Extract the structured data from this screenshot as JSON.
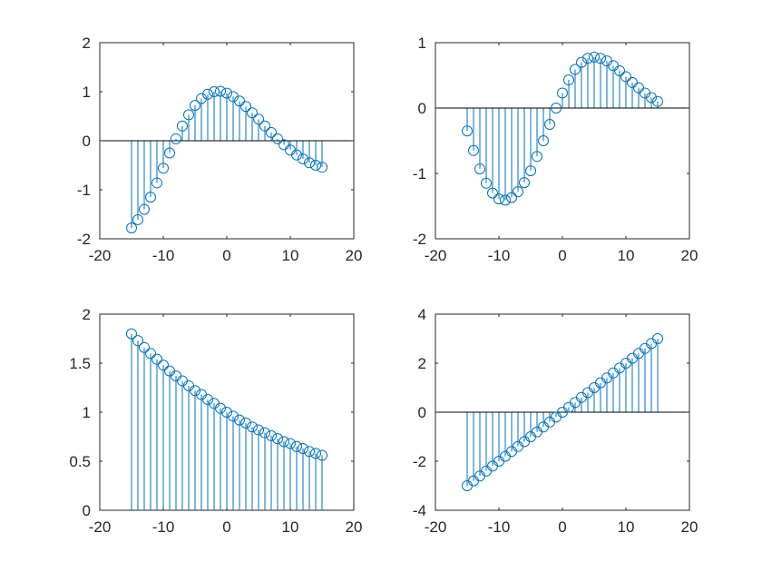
{
  "figure": {
    "line_color": "#0072BD"
  },
  "chart_data": [
    {
      "type": "stem",
      "position": "top-left",
      "xlim": [
        -20,
        20
      ],
      "ylim": [
        -2,
        2
      ],
      "xticks": [
        -20,
        -10,
        0,
        10,
        20
      ],
      "yticks": [
        -2,
        -1,
        0,
        1,
        2
      ],
      "xtick_labels": [
        "-20",
        "-10",
        "0",
        "10",
        "20"
      ],
      "ytick_labels": [
        "-2",
        "-1",
        "0",
        "1",
        "2"
      ],
      "baseline": 0,
      "x": [
        -15,
        -14,
        -13,
        -12,
        -11,
        -10,
        -9,
        -8,
        -7,
        -6,
        -5,
        -4,
        -3,
        -2,
        -1,
        0,
        1,
        2,
        3,
        4,
        5,
        6,
        7,
        8,
        9,
        10,
        11,
        12,
        13,
        14,
        15
      ],
      "y": [
        -1.78,
        -1.61,
        -1.4,
        -1.15,
        -0.86,
        -0.56,
        -0.25,
        0.04,
        0.3,
        0.53,
        0.72,
        0.86,
        0.95,
        1.0,
        1.01,
        0.97,
        0.9,
        0.81,
        0.7,
        0.57,
        0.44,
        0.3,
        0.17,
        0.04,
        -0.08,
        -0.19,
        -0.29,
        -0.37,
        -0.45,
        -0.5,
        -0.54
      ]
    },
    {
      "type": "stem",
      "position": "top-right",
      "xlim": [
        -20,
        20
      ],
      "ylim": [
        -2,
        1
      ],
      "xticks": [
        -20,
        -10,
        0,
        10,
        20
      ],
      "yticks": [
        -2,
        -1,
        0,
        1
      ],
      "xtick_labels": [
        "-20",
        "-10",
        "0",
        "10",
        "20"
      ],
      "ytick_labels": [
        "-2",
        "-1",
        "0",
        "1"
      ],
      "baseline": 0,
      "x": [
        -15,
        -14,
        -13,
        -12,
        -11,
        -10,
        -9,
        -8,
        -7,
        -6,
        -5,
        -4,
        -3,
        -2,
        -1,
        0,
        1,
        2,
        3,
        4,
        5,
        6,
        7,
        8,
        9,
        10,
        11,
        12,
        13,
        14,
        15
      ],
      "y": [
        -0.35,
        -0.65,
        -0.93,
        -1.15,
        -1.3,
        -1.39,
        -1.41,
        -1.37,
        -1.28,
        -1.14,
        -0.96,
        -0.74,
        -0.5,
        -0.25,
        0.0,
        0.23,
        0.43,
        0.59,
        0.7,
        0.76,
        0.78,
        0.76,
        0.72,
        0.65,
        0.57,
        0.48,
        0.39,
        0.31,
        0.23,
        0.16,
        0.1
      ]
    },
    {
      "type": "stem",
      "position": "bottom-left",
      "xlim": [
        -20,
        20
      ],
      "ylim": [
        0,
        2
      ],
      "xticks": [
        -20,
        -10,
        0,
        10,
        20
      ],
      "yticks": [
        0,
        0.5,
        1,
        1.5,
        2
      ],
      "xtick_labels": [
        "-20",
        "-10",
        "0",
        "10",
        "20"
      ],
      "ytick_labels": [
        "0",
        "0.5",
        "1",
        "1.5",
        "2"
      ],
      "baseline": 0,
      "x": [
        -15,
        -14,
        -13,
        -12,
        -11,
        -10,
        -9,
        -8,
        -7,
        -6,
        -5,
        -4,
        -3,
        -2,
        -1,
        0,
        1,
        2,
        3,
        4,
        5,
        6,
        7,
        8,
        9,
        10,
        11,
        12,
        13,
        14,
        15
      ],
      "y": [
        1.8,
        1.73,
        1.66,
        1.6,
        1.54,
        1.48,
        1.42,
        1.37,
        1.32,
        1.27,
        1.22,
        1.18,
        1.13,
        1.09,
        1.04,
        1.0,
        0.96,
        0.92,
        0.89,
        0.85,
        0.82,
        0.79,
        0.76,
        0.73,
        0.7,
        0.68,
        0.65,
        0.63,
        0.6,
        0.58,
        0.56
      ]
    },
    {
      "type": "stem",
      "position": "bottom-right",
      "xlim": [
        -20,
        20
      ],
      "ylim": [
        -4,
        4
      ],
      "xticks": [
        -20,
        -10,
        0,
        10,
        20
      ],
      "yticks": [
        -4,
        -2,
        0,
        2,
        4
      ],
      "xtick_labels": [
        "-20",
        "-10",
        "0",
        "10",
        "20"
      ],
      "ytick_labels": [
        "-4",
        "-2",
        "0",
        "2",
        "4"
      ],
      "baseline": 0,
      "x": [
        -15,
        -14,
        -13,
        -12,
        -11,
        -10,
        -9,
        -8,
        -7,
        -6,
        -5,
        -4,
        -3,
        -2,
        -1,
        0,
        1,
        2,
        3,
        4,
        5,
        6,
        7,
        8,
        9,
        10,
        11,
        12,
        13,
        14,
        15
      ],
      "y": [
        -3.0,
        -2.8,
        -2.6,
        -2.4,
        -2.2,
        -2.0,
        -1.8,
        -1.6,
        -1.4,
        -1.2,
        -1.0,
        -0.8,
        -0.6,
        -0.4,
        -0.2,
        0.0,
        0.2,
        0.4,
        0.6,
        0.8,
        1.0,
        1.2,
        1.4,
        1.6,
        1.8,
        2.0,
        2.2,
        2.4,
        2.6,
        2.8,
        3.0
      ]
    }
  ]
}
